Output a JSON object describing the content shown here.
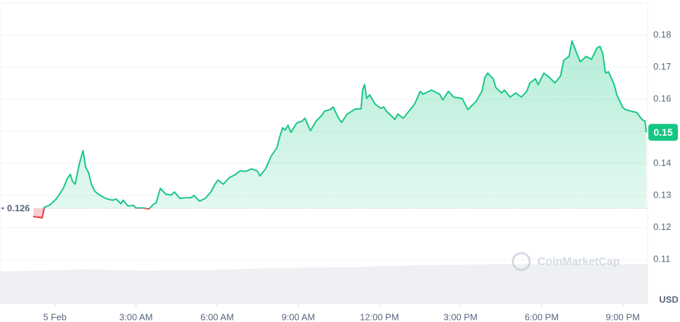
{
  "chart_data": {
    "type": "line",
    "color": "#16c784",
    "below_color": "#ea3943",
    "grid": true,
    "baseline": 0.126,
    "price_tag": {
      "value": 0.1497,
      "label": "0.15"
    },
    "unit_label": "USD",
    "watermark": "CoinMarketCap",
    "xlim": [
      -2.03,
      21.92
    ],
    "ylim": [
      0.0962,
      0.191
    ],
    "xticks": [
      {
        "value": 0,
        "label": "5 Feb"
      },
      {
        "value": 3,
        "label": "3:00 AM"
      },
      {
        "value": 6,
        "label": "6:00 AM"
      },
      {
        "value": 9,
        "label": "9:00 AM"
      },
      {
        "value": 12,
        "label": "12:00 PM"
      },
      {
        "value": 15,
        "label": "3:00 PM"
      },
      {
        "value": 18,
        "label": "6:00 PM"
      },
      {
        "value": 21,
        "label": "9:00 PM"
      }
    ],
    "yticks": [
      0.11,
      0.12,
      0.13,
      0.14,
      0.15,
      0.16,
      0.17,
      0.18
    ],
    "x": [
      -0.81,
      -0.6,
      -0.47,
      -0.39,
      -0.21,
      0.05,
      0.31,
      0.44,
      0.57,
      0.65,
      0.75,
      0.91,
      1.04,
      1.14,
      1.25,
      1.35,
      1.48,
      1.61,
      1.87,
      2.13,
      2.26,
      2.44,
      2.52,
      2.7,
      2.91,
      2.99,
      3.25,
      3.48,
      3.64,
      3.74,
      3.9,
      4.1,
      4.31,
      4.42,
      4.62,
      4.83,
      5.04,
      5.14,
      5.35,
      5.56,
      5.77,
      5.92,
      6.03,
      6.23,
      6.44,
      6.65,
      6.86,
      7.06,
      7.27,
      7.48,
      7.58,
      7.79,
      8.0,
      8.21,
      8.31,
      8.42,
      8.52,
      8.62,
      8.73,
      8.94,
      9.14,
      9.25,
      9.45,
      9.66,
      9.87,
      9.97,
      10.18,
      10.29,
      10.49,
      10.6,
      10.81,
      11.12,
      11.32,
      11.38,
      11.45,
      11.53,
      11.64,
      11.84,
      12.05,
      12.16,
      12.26,
      12.47,
      12.57,
      12.68,
      12.88,
      13.09,
      13.3,
      13.51,
      13.61,
      13.92,
      14.23,
      14.34,
      14.55,
      14.75,
      15.06,
      15.27,
      15.58,
      15.79,
      15.9,
      16.0,
      16.21,
      16.31,
      16.52,
      16.62,
      16.83,
      17.04,
      17.25,
      17.45,
      17.56,
      17.77,
      17.87,
      18.08,
      18.29,
      18.49,
      18.7,
      18.81,
      19.01,
      19.12,
      19.32,
      19.43,
      19.64,
      19.84,
      20.05,
      20.16,
      20.26,
      20.36,
      20.47,
      20.68,
      20.78,
      20.99,
      21.09,
      21.3,
      21.51,
      21.71,
      21.82,
      21.87
    ],
    "values": [
      0.1234,
      0.1232,
      0.123,
      0.1263,
      0.1269,
      0.1289,
      0.1322,
      0.135,
      0.1366,
      0.1344,
      0.1335,
      0.1401,
      0.144,
      0.1388,
      0.137,
      0.1335,
      0.1313,
      0.1304,
      0.1291,
      0.1285,
      0.1289,
      0.1274,
      0.1285,
      0.1267,
      0.1269,
      0.1261,
      0.1261,
      0.1258,
      0.1272,
      0.1276,
      0.1322,
      0.1304,
      0.1302,
      0.1311,
      0.1291,
      0.1293,
      0.1293,
      0.13,
      0.1282,
      0.1291,
      0.1311,
      0.1335,
      0.1348,
      0.1335,
      0.1355,
      0.1364,
      0.1377,
      0.1375,
      0.1383,
      0.1377,
      0.1361,
      0.1383,
      0.1423,
      0.1449,
      0.1482,
      0.1511,
      0.1504,
      0.1519,
      0.1497,
      0.1526,
      0.1532,
      0.1541,
      0.1502,
      0.1532,
      0.155,
      0.1563,
      0.1568,
      0.1576,
      0.1541,
      0.1528,
      0.1554,
      0.157,
      0.157,
      0.1629,
      0.1646,
      0.1603,
      0.1614,
      0.1585,
      0.1572,
      0.1576,
      0.1563,
      0.1546,
      0.1537,
      0.1554,
      0.1541,
      0.1563,
      0.1585,
      0.1625,
      0.1616,
      0.1629,
      0.1616,
      0.1598,
      0.1625,
      0.1607,
      0.1603,
      0.1568,
      0.1594,
      0.1625,
      0.1668,
      0.1682,
      0.1664,
      0.1636,
      0.162,
      0.1629,
      0.1607,
      0.162,
      0.1607,
      0.1625,
      0.1651,
      0.1664,
      0.1646,
      0.1682,
      0.1668,
      0.1651,
      0.1673,
      0.1721,
      0.1734,
      0.1782,
      0.1739,
      0.1717,
      0.1734,
      0.1725,
      0.1761,
      0.1765,
      0.1743,
      0.1682,
      0.1686,
      0.1646,
      0.1614,
      0.1576,
      0.1568,
      0.1563,
      0.1559,
      0.1537,
      0.1532,
      0.1497
    ]
  }
}
